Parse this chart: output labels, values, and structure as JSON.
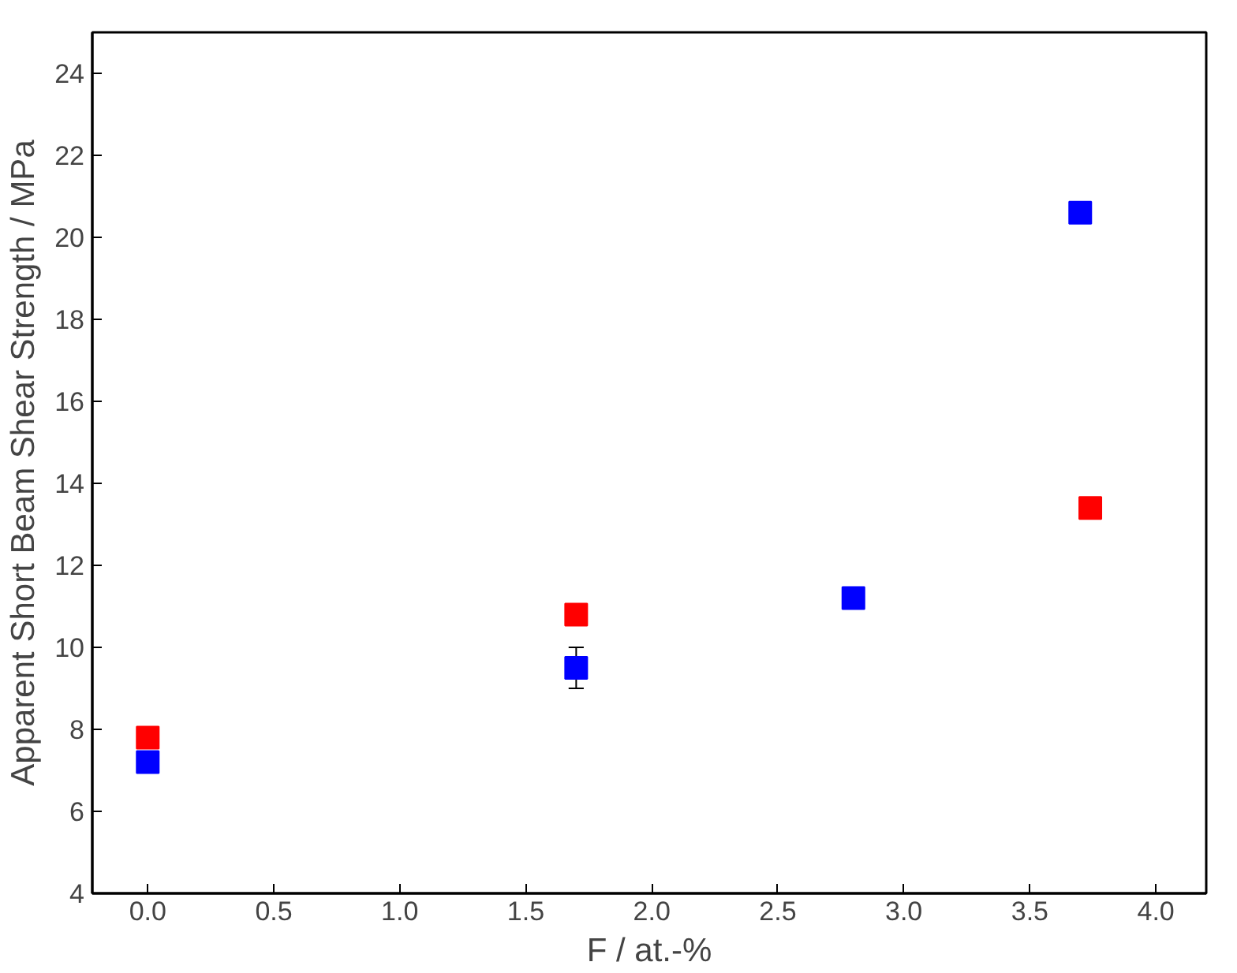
{
  "chart_data": {
    "type": "scatter",
    "xlabel": "F / at.-%",
    "ylabel": "Apparent Short Beam Shear Strength / MPa",
    "xlim": [
      -0.22,
      4.2
    ],
    "ylim": [
      4,
      25
    ],
    "xticks": [
      {
        "value": 0,
        "label": "0.0"
      },
      {
        "value": 0.5,
        "label": "0.5"
      },
      {
        "value": 1,
        "label": "1.0"
      },
      {
        "value": 1.5,
        "label": "1.5"
      },
      {
        "value": 2,
        "label": "2.0"
      },
      {
        "value": 2.5,
        "label": "2.5"
      },
      {
        "value": 3,
        "label": "3.0"
      },
      {
        "value": 3.5,
        "label": "3.5"
      },
      {
        "value": 4,
        "label": "4.0"
      }
    ],
    "yticks": [
      4,
      6,
      8,
      10,
      12,
      14,
      16,
      18,
      20,
      22,
      24
    ],
    "grid": false,
    "marker": "square",
    "series": [
      {
        "color": "#ff0000",
        "x": [
          0,
          1.7,
          3.74
        ],
        "values": [
          7.8,
          10.8,
          13.4
        ]
      },
      {
        "color": "#0000ff",
        "x": [
          0,
          1.7,
          2.8,
          3.7
        ],
        "values": [
          7.2,
          9.5,
          11.2,
          20.6
        ],
        "errors": [
          null,
          0.5,
          null,
          null
        ]
      }
    ]
  }
}
